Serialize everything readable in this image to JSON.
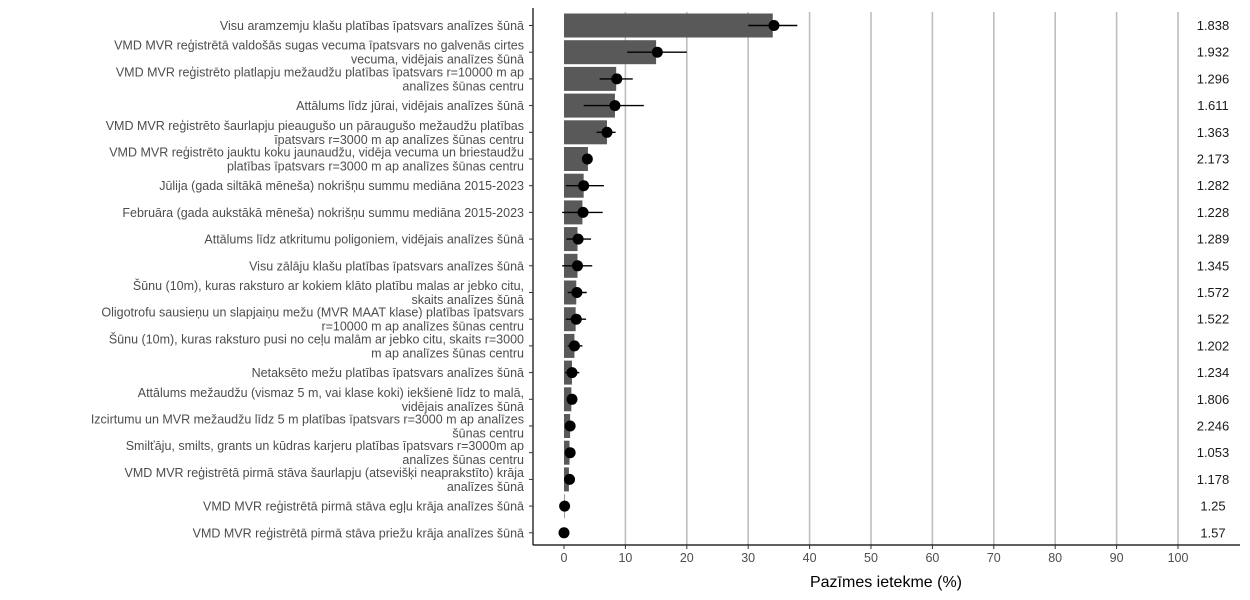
{
  "chart_data": {
    "type": "bar",
    "xlabel": "Pazīmes ietekme (%)",
    "xlim": [
      0,
      100
    ],
    "x_ticks": [
      0,
      10,
      20,
      30,
      40,
      50,
      60,
      70,
      80,
      90,
      100
    ],
    "grid": true,
    "bar_color": "#595959",
    "point_color": "#000000",
    "categories": [
      [
        "Visu aramzemju klašu platības īpatsvars analīzes šūnā"
      ],
      [
        "VMD MVR reģistrētā valdošās sugas vecuma īpatsvars no galvenās cirtes",
        "vecuma, vidējais analīzes šūnā"
      ],
      [
        "VMD MVR reģistrēto platlapju mežaudžu platības īpatsvars r=10000 m ap",
        "analīzes šūnas centru"
      ],
      [
        "Attālums līdz jūrai, vidējais analīzes šūnā"
      ],
      [
        "VMD MVR reģistrēto šaurlapju pieaugušo un pāraugušo mežaudžu platības",
        "īpatsvars r=3000 m ap analīzes šūnas centru"
      ],
      [
        "VMD MVR reģistrēto jauktu koku jaunaudžu, vidēja vecuma un briestaudžu",
        "platības īpatsvars r=3000 m ap analīzes šūnas centru"
      ],
      [
        "Jūlija (gada siltākā mēneša) nokrišņu summu mediāna 2015-2023"
      ],
      [
        "Februāra (gada aukstākā mēneša) nokrišņu summu mediāna 2015-2023"
      ],
      [
        "Attālums līdz atkritumu poligoniem, vidējais analīzes šūnā"
      ],
      [
        "Visu zālāju klašu platības īpatsvars analīzes šūnā"
      ],
      [
        "Šūnu (10m), kuras raksturo ar kokiem klāto platību malas ar jebko citu,",
        "skaits analīzes šūnā"
      ],
      [
        "Oligotrofu sausieņu un slapjaiņu mežu (MVR MAAT klase) platības īpatsvars",
        "r=10000 m ap analīzes šūnas centru"
      ],
      [
        "Šūnu (10m), kuras raksturo pusi no ceļu malām ar jebko citu, skaits r=3000",
        "m ap analīzes šūnas centru"
      ],
      [
        "Netaksēto mežu platības īpatsvars analīzes šūnā"
      ],
      [
        "Attālums mežaudžu (vismaz 5 m, vai klase koki) iekšienē līdz to malā,",
        "vidējais analīzes šūnā"
      ],
      [
        "Izcirtumu un MVR mežaudžu līdz 5 m platības īpatsvars r=3000 m ap analīzes",
        "šūnas centru"
      ],
      [
        "Smilťāju, smilts, grants un kūdras karjeru platības īpatsvars r=3000m ap",
        "analīzes šūnas centru"
      ],
      [
        "VMD MVR reģistrētā pirmā stāva šaurlapju (atsevišķi neaprakstīto) krāja",
        "analīzes šūnā"
      ],
      [
        "VMD MVR reģistrētā pirmā stāva egļu krāja analīzes šūnā"
      ],
      [
        "VMD MVR reģistrētā pirmā stāva priežu krāja analīzes šūnā"
      ]
    ],
    "bar_values": [
      34.0,
      15.0,
      8.5,
      8.3,
      7.0,
      3.9,
      3.2,
      3.0,
      2.2,
      2.2,
      2.0,
      1.9,
      1.7,
      1.3,
      1.2,
      1.0,
      0.9,
      0.8,
      0.1,
      0.0
    ],
    "point_values": [
      34.2,
      15.2,
      8.6,
      8.3,
      7.0,
      3.8,
      3.2,
      3.1,
      2.3,
      2.2,
      2.1,
      2.0,
      1.7,
      1.3,
      1.3,
      1.0,
      1.0,
      0.9,
      0.1,
      0.0
    ],
    "err_low": [
      30.0,
      10.3,
      5.8,
      3.2,
      5.3,
      3.8,
      0.3,
      -0.3,
      0.4,
      -0.3,
      0.6,
      0.3,
      0.6,
      0.2,
      0.7,
      0.6,
      0.6,
      0.4,
      0.1,
      0.0
    ],
    "err_high": [
      38.0,
      20.0,
      11.2,
      13.0,
      8.4,
      3.9,
      6.5,
      6.3,
      4.4,
      4.6,
      3.7,
      3.6,
      3.0,
      2.5,
      1.8,
      1.4,
      1.4,
      1.5,
      0.1,
      0.0
    ],
    "vif_values": [
      "1.838",
      "1.932",
      "1.296",
      "1.611",
      "1.363",
      "2.173",
      "1.282",
      "1.228",
      "1.289",
      "1.345",
      "1.572",
      "1.522",
      "1.202",
      "1.234",
      "1.806",
      "2.246",
      "1.053",
      "1.178",
      "1.25",
      "1.57"
    ]
  }
}
